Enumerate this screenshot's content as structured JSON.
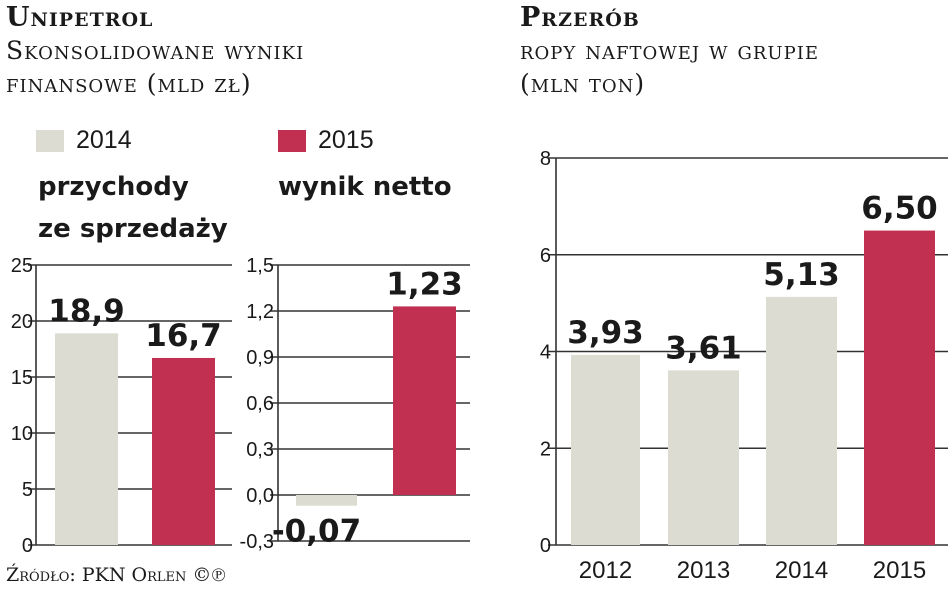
{
  "left": {
    "title": "Unipetrol",
    "subtitle_line1": "Skonsolidowane wyniki",
    "subtitle_line2": "finansowe (mld zł)",
    "legend": [
      {
        "label": "2014",
        "color": "#dcdcd2"
      },
      {
        "label": "2015",
        "color": "#c13050"
      }
    ]
  },
  "right": {
    "title": "Przerób",
    "subtitle_line1": "ropy naftowej w grupie",
    "subtitle_line2": "(mln ton)"
  },
  "source": "Źródło: PKN Orlen ©℗",
  "colors": {
    "light": "#dcdcd2",
    "accent": "#c13050",
    "grid": "#333333"
  },
  "chart_data": [
    {
      "type": "bar",
      "title_line1": "przychody",
      "title_line2": "ze sprzedaży",
      "categories": [
        "2014",
        "2015"
      ],
      "values": [
        18.9,
        16.7
      ],
      "value_labels": [
        "18,9",
        "16,7"
      ],
      "ylim": [
        0,
        25
      ],
      "yticks": [
        0,
        5,
        10,
        15,
        20,
        25
      ],
      "ytick_labels": [
        "0",
        "5",
        "10",
        "15",
        "20",
        "25"
      ],
      "grid": true
    },
    {
      "type": "bar",
      "title": "wynik netto",
      "categories": [
        "2014",
        "2015"
      ],
      "values": [
        -0.07,
        1.23
      ],
      "value_labels": [
        "-0,07",
        "1,23"
      ],
      "ylim": [
        -0.3,
        1.5
      ],
      "yticks": [
        -0.3,
        0,
        0.3,
        0.6,
        0.9,
        1.2,
        1.5
      ],
      "ytick_labels": [
        "-0,3",
        "0,0",
        "0,3",
        "0,6",
        "0,9",
        "1,2",
        "1,5"
      ],
      "grid": true
    },
    {
      "type": "bar",
      "categories": [
        "2012",
        "2013",
        "2014",
        "2015"
      ],
      "values": [
        3.93,
        3.61,
        5.13,
        6.5
      ],
      "value_labels": [
        "3,93",
        "3,61",
        "5,13",
        "6,50"
      ],
      "ylim": [
        0,
        8
      ],
      "yticks": [
        0,
        2,
        4,
        6,
        8
      ],
      "ytick_labels": [
        "0",
        "2",
        "4",
        "6",
        "8"
      ],
      "grid": true
    }
  ]
}
